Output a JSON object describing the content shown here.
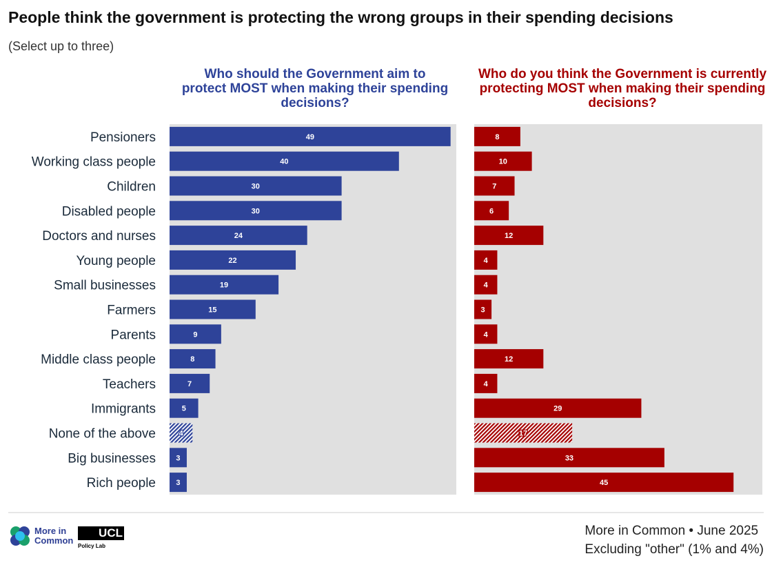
{
  "chart_data": {
    "type": "bar",
    "title": "People think the government is protecting the wrong groups in their spending decisions",
    "subtitle": "(Select up to three)",
    "categories": [
      "Pensioners",
      "Working class people",
      "Children",
      "Disabled people",
      "Doctors and nurses",
      "Young people",
      "Small businesses",
      "Farmers",
      "Parents",
      "Middle class people",
      "Teachers",
      "Immigrants",
      "None of the above",
      "Big businesses",
      "Rich people"
    ],
    "xlim": [
      0,
      50
    ],
    "series": [
      {
        "name": "Who should the Government aim to protect MOST when making their spending decisions?",
        "color": "#2e4399",
        "values": [
          49,
          40,
          30,
          30,
          24,
          22,
          19,
          15,
          9,
          8,
          7,
          5,
          4,
          3,
          3
        ]
      },
      {
        "name": "Who do you think the Government is currently protecting MOST when making their spending decisions?",
        "color": "#a50000",
        "values": [
          8,
          10,
          7,
          6,
          12,
          4,
          4,
          3,
          4,
          12,
          4,
          29,
          17,
          33,
          45
        ]
      }
    ],
    "hatched_category": "None of the above"
  },
  "footer": {
    "source": "More in Common • June 2025",
    "note": "Excluding \"other\" (1% and 4%)",
    "logo1": "More in Common",
    "logo2": "UCL",
    "logo2_sub": "Policy Lab"
  }
}
